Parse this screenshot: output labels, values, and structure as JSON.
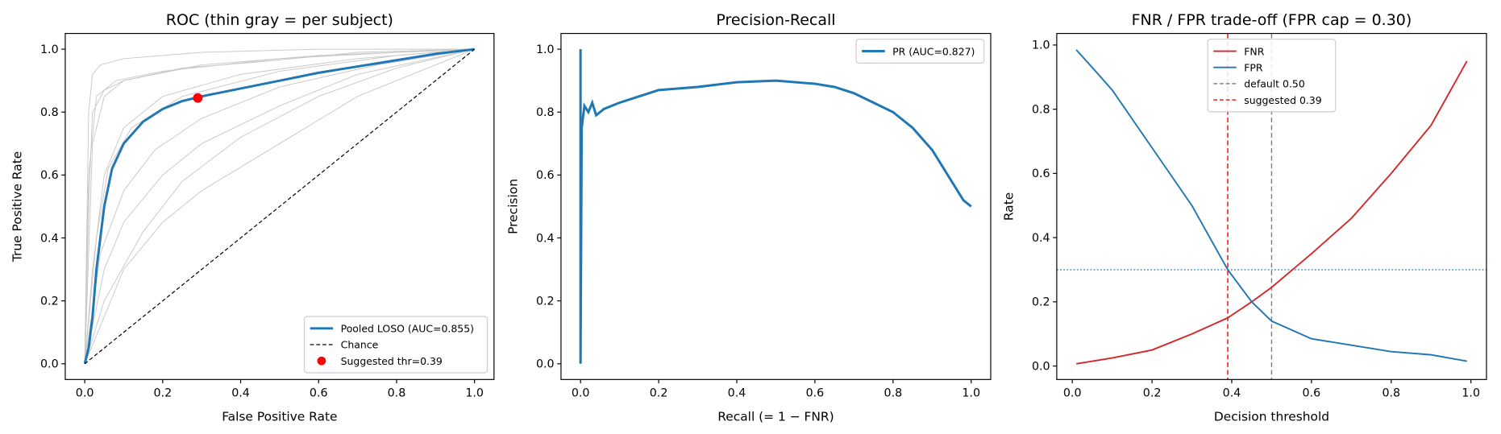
{
  "chart_data": [
    {
      "type": "line",
      "title": "ROC (thin gray = per subject)",
      "xlabel": "False Positive Rate",
      "ylabel": "True Positive Rate",
      "xlim": [
        -0.05,
        1.05
      ],
      "ylim": [
        -0.05,
        1.05
      ],
      "xticks": [
        {
          "value": 0,
          "label": "0.0"
        },
        0.2,
        0.4,
        0.6,
        0.8,
        {
          "value": 1,
          "label": "1.0"
        }
      ],
      "yticks": [
        {
          "value": 0,
          "label": "0.0"
        },
        0.2,
        0.4,
        0.6,
        0.8,
        {
          "value": 1,
          "label": "1.0"
        }
      ],
      "legend": "lower right",
      "series": [
        {
          "color": "#c8c8c8",
          "width": 0.8,
          "x": [
            0,
            0.01,
            0.02,
            0.05,
            0.1,
            0.3,
            0.6,
            1
          ],
          "values": [
            0,
            0.5,
            0.8,
            0.87,
            0.9,
            0.95,
            0.98,
            1
          ]
        },
        {
          "color": "#c8c8c8",
          "width": 0.8,
          "x": [
            0,
            0.02,
            0.05,
            0.1,
            0.2,
            0.4,
            0.7,
            1
          ],
          "values": [
            0,
            0.3,
            0.6,
            0.75,
            0.85,
            0.92,
            0.97,
            1
          ]
        },
        {
          "color": "#c8c8c8",
          "width": 0.8,
          "x": [
            0,
            0.05,
            0.1,
            0.2,
            0.3,
            0.5,
            0.7,
            1
          ],
          "values": [
            0,
            0.15,
            0.3,
            0.45,
            0.55,
            0.7,
            0.85,
            1
          ]
        },
        {
          "color": "#c8c8c8",
          "width": 0.8,
          "x": [
            0,
            0.05,
            0.1,
            0.2,
            0.3,
            0.5,
            0.7,
            1
          ],
          "values": [
            0,
            0.3,
            0.45,
            0.6,
            0.7,
            0.82,
            0.92,
            1
          ]
        },
        {
          "color": "#c8c8c8",
          "width": 0.8,
          "x": [
            0,
            0.01,
            0.03,
            0.08,
            0.2,
            0.5,
            0.8,
            1
          ],
          "values": [
            0,
            0.6,
            0.85,
            0.9,
            0.93,
            0.97,
            0.99,
            1
          ]
        },
        {
          "color": "#c8c8c8",
          "width": 0.8,
          "x": [
            0,
            0.03,
            0.06,
            0.12,
            0.25,
            0.5,
            0.8,
            1
          ],
          "values": [
            0,
            0.4,
            0.62,
            0.75,
            0.85,
            0.93,
            0.98,
            1
          ]
        },
        {
          "color": "#c8c8c8",
          "width": 0.8,
          "x": [
            0,
            0.02,
            0.05,
            0.1,
            0.25,
            0.45,
            0.7,
            1
          ],
          "values": [
            0,
            0.7,
            0.85,
            0.9,
            0.94,
            0.96,
            0.99,
            1
          ]
        },
        {
          "color": "#c8c8c8",
          "width": 0.8,
          "x": [
            0,
            0.04,
            0.1,
            0.18,
            0.3,
            0.5,
            0.75,
            1
          ],
          "values": [
            0,
            0.35,
            0.55,
            0.68,
            0.78,
            0.88,
            0.95,
            1
          ]
        },
        {
          "color": "#c8c8c8",
          "width": 0.8,
          "x": [
            0,
            0.01,
            0.02,
            0.04,
            0.1,
            0.3,
            0.6,
            1
          ],
          "values": [
            0,
            0.8,
            0.92,
            0.95,
            0.97,
            0.99,
            1,
            1
          ]
        },
        {
          "color": "#c8c8c8",
          "width": 0.8,
          "x": [
            0,
            0.05,
            0.15,
            0.25,
            0.4,
            0.6,
            0.8,
            1
          ],
          "values": [
            0,
            0.2,
            0.42,
            0.58,
            0.72,
            0.85,
            0.94,
            1
          ]
        },
        {
          "name": "Pooled LOSO (AUC=0.855)",
          "color": "#1f77b4",
          "width": 2.5,
          "x": [
            0,
            0.01,
            0.02,
            0.03,
            0.05,
            0.07,
            0.1,
            0.15,
            0.2,
            0.25,
            0.3,
            0.4,
            0.5,
            0.6,
            0.7,
            0.8,
            0.9,
            1
          ],
          "values": [
            0,
            0.05,
            0.15,
            0.3,
            0.5,
            0.62,
            0.7,
            0.77,
            0.81,
            0.835,
            0.85,
            0.875,
            0.9,
            0.925,
            0.945,
            0.965,
            0.985,
            1
          ]
        },
        {
          "name": "Chance",
          "color": "#000000",
          "width": 1,
          "dashed": true,
          "x": [
            0,
            1
          ],
          "values": [
            0,
            1
          ]
        },
        {
          "name": "Suggested thr=0.39",
          "type": "scatter",
          "color": "#ff0000",
          "x": [
            0.29
          ],
          "values": [
            0.845
          ]
        }
      ]
    },
    {
      "type": "line",
      "title": "Precision-Recall",
      "xlabel": "Recall (= 1 − FNR)",
      "ylabel": "Precision",
      "xlim": [
        -0.05,
        1.05
      ],
      "ylim": [
        -0.05,
        1.05
      ],
      "xticks": [
        {
          "value": 0,
          "label": "0.0"
        },
        0.2,
        0.4,
        0.6,
        0.8,
        {
          "value": 1,
          "label": "1.0"
        }
      ],
      "yticks": [
        {
          "value": 0,
          "label": "0.0"
        },
        0.2,
        0.4,
        0.6,
        0.8,
        {
          "value": 1,
          "label": "1.0"
        }
      ],
      "legend": "upper right",
      "series": [
        {
          "name": "PR (AUC=0.827)",
          "color": "#1f77b4",
          "width": 2.5,
          "x": [
            0,
            0,
            0.003,
            0.01,
            0.02,
            0.03,
            0.04,
            0.06,
            0.1,
            0.15,
            0.2,
            0.3,
            0.4,
            0.5,
            0.6,
            0.65,
            0.7,
            0.75,
            0.8,
            0.85,
            0.9,
            0.95,
            0.98,
            1
          ],
          "values": [
            1,
            0,
            0.75,
            0.82,
            0.8,
            0.83,
            0.79,
            0.81,
            0.83,
            0.85,
            0.87,
            0.88,
            0.895,
            0.9,
            0.89,
            0.88,
            0.86,
            0.83,
            0.8,
            0.75,
            0.68,
            0.58,
            0.52,
            0.5
          ]
        }
      ]
    },
    {
      "type": "line",
      "title": "FNR / FPR trade-off (FPR cap = 0.30)",
      "xlabel": "Decision threshold",
      "ylabel": "Rate",
      "xlim": [
        -0.039,
        1.039
      ],
      "ylim": [
        -0.042,
        1.036
      ],
      "xticks": [
        {
          "value": 0,
          "label": "0.0"
        },
        0.2,
        0.4,
        0.6,
        0.8,
        {
          "value": 1,
          "label": "1.0"
        }
      ],
      "yticks": [
        {
          "value": 0,
          "label": "0.0"
        },
        0.2,
        0.4,
        0.6,
        0.8,
        {
          "value": 1,
          "label": "1.0"
        }
      ],
      "legend": "upper center",
      "series": [
        {
          "name": "FNR",
          "color": "#d62728",
          "width": 1.6,
          "x": [
            0.01,
            0.1,
            0.2,
            0.3,
            0.39,
            0.45,
            0.5,
            0.6,
            0.7,
            0.8,
            0.9,
            0.99
          ],
          "values": [
            0.007,
            0.025,
            0.05,
            0.1,
            0.15,
            0.2,
            0.245,
            0.35,
            0.46,
            0.6,
            0.75,
            0.95
          ]
        },
        {
          "name": "FPR",
          "color": "#1f77b4",
          "width": 1.6,
          "x": [
            0.01,
            0.05,
            0.1,
            0.2,
            0.3,
            0.39,
            0.45,
            0.5,
            0.6,
            0.7,
            0.8,
            0.9,
            0.99
          ],
          "values": [
            0.985,
            0.93,
            0.86,
            0.68,
            0.5,
            0.3,
            0.2,
            0.14,
            0.085,
            0.065,
            0.045,
            0.035,
            0.015
          ]
        }
      ],
      "vlines": [
        {
          "name": "default 0.50",
          "x": 0.5,
          "color": "#808080"
        },
        {
          "name": "suggested 0.39",
          "x": 0.39,
          "color": "#ff0000"
        }
      ],
      "hlines": [
        {
          "y": 0.3,
          "color": "#1f77b4"
        }
      ]
    }
  ]
}
